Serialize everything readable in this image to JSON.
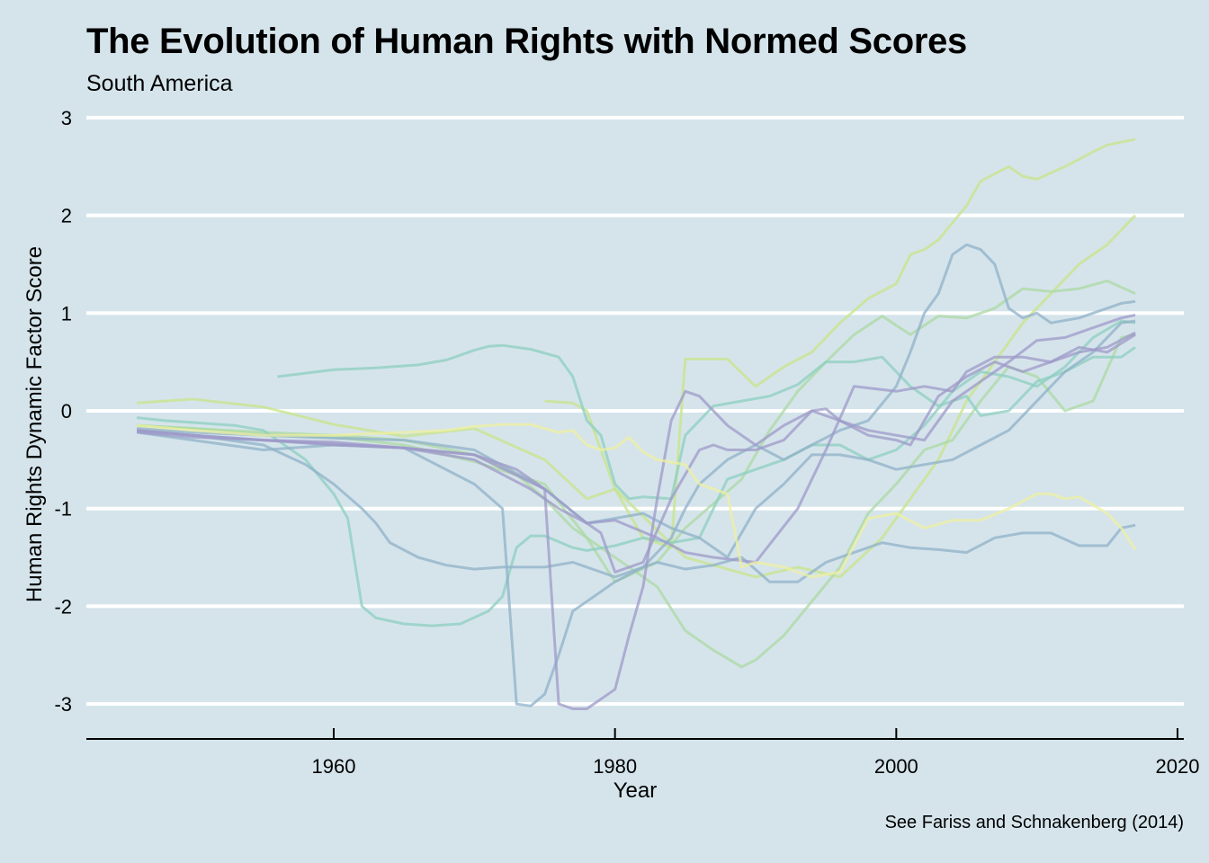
{
  "chart_data": {
    "type": "line",
    "title": "The Evolution of Human Rights with Normed Scores",
    "subtitle": "South America",
    "xlabel": "Year",
    "ylabel": "Human Rights Dynamic Factor Score",
    "caption": "See Fariss and Schnakenberg (2014)",
    "xlim": [
      1945,
      2017
    ],
    "ylim": [
      -3.3,
      3
    ],
    "x_ticks": [
      1960,
      1980,
      2000,
      2020
    ],
    "y_ticks": [
      -3,
      -2,
      -1,
      0,
      1,
      2,
      3
    ],
    "grid": "horizontal",
    "legend": "none",
    "series": [
      {
        "color": "#c7e48a",
        "x": [
          1946,
          1950,
          1955,
          1960,
          1965,
          1970,
          1975,
          1978,
          1980,
          1985,
          1990,
          1993,
          1996,
          1999,
          2001,
          2003,
          2005,
          2007,
          2009,
          2011,
          2013,
          2015,
          2017
        ],
        "y": [
          0.08,
          0.12,
          0.04,
          -0.14,
          -0.26,
          -0.18,
          -0.5,
          -0.9,
          -0.8,
          -1.5,
          -1.7,
          -1.6,
          -1.7,
          -1.3,
          -0.9,
          -0.5,
          0.1,
          0.5,
          0.9,
          1.2,
          1.5,
          1.7,
          2.0
        ]
      },
      {
        "color": "#c7e48a",
        "x": [
          1975,
          1977,
          1978,
          1979,
          1980,
          1982,
          1984,
          1985,
          1988,
          1990,
          1992,
          1994,
          1996,
          1998,
          2000,
          2001,
          2002,
          2003,
          2005,
          2006,
          2008,
          2009,
          2010,
          2012,
          2014,
          2015,
          2017
        ],
        "y": [
          0.1,
          0.08,
          0.0,
          -0.4,
          -0.8,
          -1.3,
          -1.4,
          0.53,
          0.53,
          0.25,
          0.45,
          0.6,
          0.9,
          1.15,
          1.3,
          1.6,
          1.65,
          1.75,
          2.1,
          2.35,
          2.5,
          2.4,
          2.37,
          2.5,
          2.65,
          2.72,
          2.78
        ]
      },
      {
        "color": "#abd9a3",
        "x": [
          1946,
          1950,
          1955,
          1960,
          1965,
          1970,
          1973,
          1975,
          1977,
          1979,
          1981,
          1983,
          1985,
          1987,
          1989,
          1990,
          1992,
          1994,
          1996,
          1998,
          2000,
          2002,
          2004,
          2006,
          2008,
          2010,
          2012,
          2014,
          2016,
          2017
        ],
        "y": [
          -0.15,
          -0.18,
          -0.22,
          -0.25,
          -0.3,
          -0.45,
          -0.65,
          -0.9,
          -1.2,
          -1.4,
          -1.6,
          -1.8,
          -2.25,
          -2.45,
          -2.62,
          -2.55,
          -2.3,
          -1.95,
          -1.6,
          -1.05,
          -0.75,
          -0.4,
          -0.3,
          0.1,
          0.45,
          0.35,
          0.0,
          0.1,
          0.75,
          0.78
        ]
      },
      {
        "color": "#abd9a3",
        "x": [
          1946,
          1950,
          1955,
          1960,
          1965,
          1970,
          1975,
          1978,
          1980,
          1983,
          1985,
          1987,
          1989,
          1991,
          1993,
          1995,
          1997,
          1999,
          2001,
          2003,
          2005,
          2007,
          2009,
          2011,
          2013,
          2015,
          2017
        ],
        "y": [
          -0.15,
          -0.18,
          -0.24,
          -0.27,
          -0.35,
          -0.52,
          -0.75,
          -1.3,
          -1.75,
          -1.55,
          -1.2,
          -0.95,
          -0.7,
          -0.2,
          0.2,
          0.5,
          0.78,
          0.97,
          0.78,
          0.97,
          0.95,
          1.05,
          1.25,
          1.22,
          1.25,
          1.33,
          1.2
        ]
      },
      {
        "color": "#8ccfc0",
        "x": [
          1946,
          1948,
          1950,
          1953,
          1955,
          1958,
          1960,
          1961,
          1962,
          1963,
          1965,
          1967,
          1969,
          1971,
          1972,
          1973,
          1974,
          1975,
          1977,
          1978,
          1980,
          1982,
          1984,
          1986,
          1987,
          1988,
          1990,
          1992,
          1994,
          1996,
          1998,
          2000,
          2002,
          2004,
          2006,
          2008,
          2010,
          2012,
          2014,
          2016,
          2017
        ],
        "y": [
          -0.07,
          -0.1,
          -0.12,
          -0.15,
          -0.2,
          -0.5,
          -0.85,
          -1.1,
          -2.0,
          -2.12,
          -2.18,
          -2.2,
          -2.18,
          -2.05,
          -1.9,
          -1.4,
          -1.28,
          -1.28,
          -1.4,
          -1.43,
          -1.38,
          -1.3,
          -1.35,
          -1.3,
          -1.0,
          -0.7,
          -0.6,
          -0.5,
          -0.35,
          -0.35,
          -0.5,
          -0.4,
          -0.15,
          0.2,
          0.4,
          0.35,
          0.25,
          0.45,
          0.75,
          0.92,
          0.9
        ]
      },
      {
        "color": "#8ccfc0",
        "x": [
          1956,
          1960,
          1963,
          1966,
          1968,
          1970,
          1971,
          1972,
          1974,
          1976,
          1977,
          1978,
          1979,
          1980,
          1981,
          1982,
          1984,
          1985,
          1987,
          1989,
          1991,
          1993,
          1995,
          1997,
          1999,
          2001,
          2003,
          2005,
          2006,
          2008,
          2010,
          2012,
          2014,
          2016,
          2017
        ],
        "y": [
          0.35,
          0.42,
          0.44,
          0.47,
          0.52,
          0.62,
          0.66,
          0.67,
          0.63,
          0.55,
          0.35,
          -0.1,
          -0.25,
          -0.75,
          -0.9,
          -0.88,
          -0.9,
          -0.25,
          0.05,
          0.1,
          0.15,
          0.27,
          0.5,
          0.5,
          0.55,
          0.25,
          0.05,
          0.15,
          -0.05,
          0.0,
          0.3,
          0.4,
          0.55,
          0.55,
          0.65
        ]
      },
      {
        "color": "#8fb1c8",
        "x": [
          1946,
          1950,
          1955,
          1958,
          1960,
          1962,
          1963,
          1964,
          1966,
          1968,
          1970,
          1972,
          1975,
          1977,
          1980,
          1983,
          1985,
          1987,
          1989,
          1991,
          1993,
          1995,
          1997,
          1999,
          2001,
          2003,
          2005,
          2007,
          2009,
          2011,
          2013,
          2015,
          2016,
          2017
        ],
        "y": [
          -0.2,
          -0.25,
          -0.35,
          -0.55,
          -0.75,
          -1.0,
          -1.15,
          -1.35,
          -1.5,
          -1.58,
          -1.62,
          -1.6,
          -1.6,
          -1.55,
          -1.7,
          -1.55,
          -1.62,
          -1.58,
          -1.5,
          -1.75,
          -1.75,
          -1.55,
          -1.45,
          -1.35,
          -1.4,
          -1.42,
          -1.45,
          -1.3,
          -1.25,
          -1.25,
          -1.38,
          -1.38,
          -1.2,
          -1.17
        ]
      },
      {
        "color": "#8fb1c8",
        "x": [
          1946,
          1950,
          1955,
          1960,
          1965,
          1970,
          1972,
          1973,
          1974,
          1975,
          1976,
          1977,
          1978,
          1980,
          1982,
          1984,
          1985,
          1986,
          1988,
          1990,
          1992,
          1994,
          1996,
          1998,
          2000,
          2001,
          2002,
          2003,
          2004,
          2005,
          2006,
          2007,
          2008,
          2009,
          2010,
          2011,
          2013,
          2015,
          2016,
          2017
        ],
        "y": [
          -0.22,
          -0.3,
          -0.4,
          -0.35,
          -0.38,
          -0.75,
          -1.0,
          -3.0,
          -3.02,
          -2.9,
          -2.5,
          -2.05,
          -1.95,
          -1.75,
          -1.6,
          -1.3,
          -1.0,
          -0.75,
          -0.5,
          -0.35,
          -0.5,
          -0.35,
          -0.2,
          -0.1,
          0.25,
          0.6,
          1.0,
          1.2,
          1.6,
          1.7,
          1.65,
          1.5,
          1.05,
          0.95,
          1.0,
          0.9,
          0.95,
          1.05,
          1.1,
          1.12
        ]
      },
      {
        "color": "#8fb1c8",
        "x": [
          1946,
          1950,
          1955,
          1960,
          1965,
          1970,
          1975,
          1978,
          1980,
          1982,
          1984,
          1986,
          1988,
          1990,
          1992,
          1994,
          1996,
          1998,
          2000,
          2002,
          2004,
          2006,
          2008,
          2010,
          2012,
          2014,
          2016,
          2017
        ],
        "y": [
          -0.18,
          -0.22,
          -0.25,
          -0.28,
          -0.3,
          -0.4,
          -0.8,
          -1.15,
          -1.1,
          -1.05,
          -1.2,
          -1.3,
          -1.5,
          -1.0,
          -0.75,
          -0.45,
          -0.45,
          -0.5,
          -0.6,
          -0.55,
          -0.5,
          -0.35,
          -0.2,
          0.1,
          0.4,
          0.6,
          0.9,
          0.92
        ]
      },
      {
        "color": "#9e9ac8",
        "x": [
          1946,
          1950,
          1955,
          1960,
          1965,
          1970,
          1973,
          1974,
          1975,
          1976,
          1977,
          1978,
          1980,
          1981,
          1982,
          1983,
          1984,
          1985,
          1986,
          1988,
          1990,
          1992,
          1994,
          1996,
          1998,
          2000,
          2001,
          2002,
          2003,
          2005,
          2007,
          2009,
          2011,
          2013,
          2015,
          2017
        ],
        "y": [
          -0.2,
          -0.25,
          -0.3,
          -0.32,
          -0.38,
          -0.45,
          -0.6,
          -0.7,
          -0.8,
          -3.0,
          -3.05,
          -3.05,
          -2.85,
          -2.3,
          -1.8,
          -0.9,
          -0.1,
          0.2,
          0.15,
          -0.15,
          -0.35,
          -0.15,
          0.0,
          -0.1,
          -0.25,
          -0.3,
          -0.35,
          -0.1,
          0.15,
          0.35,
          0.5,
          0.4,
          0.5,
          0.65,
          0.6,
          0.78
        ]
      },
      {
        "color": "#9e9ac8",
        "x": [
          1946,
          1950,
          1955,
          1960,
          1965,
          1970,
          1974,
          1976,
          1978,
          1979,
          1980,
          1982,
          1984,
          1986,
          1987,
          1988,
          1990,
          1992,
          1994,
          1995,
          1996,
          1998,
          2000,
          2002,
          2004,
          2006,
          2008,
          2010,
          2012,
          2014,
          2016,
          2017
        ],
        "y": [
          -0.22,
          -0.27,
          -0.3,
          -0.34,
          -0.38,
          -0.5,
          -0.8,
          -1.0,
          -1.15,
          -1.25,
          -1.65,
          -1.55,
          -0.9,
          -0.4,
          -0.35,
          -0.4,
          -0.4,
          -0.3,
          0.0,
          0.02,
          -0.1,
          -0.2,
          -0.25,
          -0.3,
          0.1,
          0.3,
          0.5,
          0.72,
          0.75,
          0.85,
          0.95,
          0.98
        ]
      },
      {
        "color": "#9e9ac8",
        "x": [
          1946,
          1950,
          1955,
          1960,
          1965,
          1970,
          1975,
          1978,
          1980,
          1983,
          1985,
          1987,
          1990,
          1993,
          1995,
          1997,
          2000,
          2002,
          2004,
          2005,
          2007,
          2009,
          2011,
          2013,
          2015,
          2017
        ],
        "y": [
          -0.2,
          -0.25,
          -0.3,
          -0.35,
          -0.38,
          -0.45,
          -0.8,
          -1.15,
          -1.12,
          -1.3,
          -1.45,
          -1.5,
          -1.55,
          -1.0,
          -0.4,
          0.25,
          0.2,
          0.25,
          0.2,
          0.4,
          0.55,
          0.55,
          0.5,
          0.6,
          0.65,
          0.8
        ]
      },
      {
        "color": "#eef0a0",
        "x": [
          1946,
          1950,
          1955,
          1960,
          1965,
          1968,
          1970,
          1972,
          1974,
          1976,
          1977,
          1978,
          1979,
          1980,
          1981,
          1982,
          1983,
          1985,
          1986,
          1988,
          1989,
          1990,
          1992,
          1994,
          1996,
          1998,
          2000,
          2002,
          2004,
          2006,
          2008,
          2010,
          2011,
          2012,
          2013,
          2015,
          2016,
          2017
        ],
        "y": [
          -0.15,
          -0.2,
          -0.25,
          -0.25,
          -0.22,
          -0.2,
          -0.16,
          -0.14,
          -0.14,
          -0.22,
          -0.2,
          -0.35,
          -0.4,
          -0.38,
          -0.27,
          -0.42,
          -0.5,
          -0.55,
          -0.75,
          -0.85,
          -1.6,
          -1.55,
          -1.6,
          -1.7,
          -1.65,
          -1.1,
          -1.05,
          -1.2,
          -1.12,
          -1.12,
          -1.0,
          -0.85,
          -0.85,
          -0.9,
          -0.88,
          -1.05,
          -1.2,
          -1.42
        ]
      }
    ]
  }
}
